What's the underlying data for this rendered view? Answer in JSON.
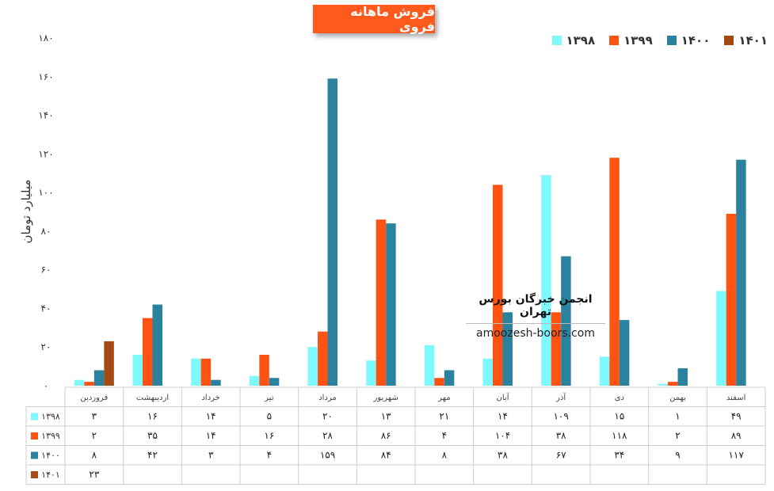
{
  "chart_data": {
    "type": "bar",
    "title": "فروش ماهانه فروی",
    "ylabel": "میلیارد تومان",
    "ylim": [
      0,
      180
    ],
    "yticks": [
      "۰",
      "۲۰",
      "۴۰",
      "۶۰",
      "۸۰",
      "۱۰۰",
      "۱۲۰",
      "۱۴۰",
      "۱۶۰",
      "۱۸۰"
    ],
    "grid": false,
    "legend_position": "top-right",
    "categories": [
      "فروردین",
      "اردیبهشت",
      "خرداد",
      "تیر",
      "مرداد",
      "شهریور",
      "مهر",
      "آبان",
      "آذر",
      "دی",
      "بهمن",
      "اسفند"
    ],
    "series": [
      {
        "name": "۱۳۹۸",
        "color": "#7ef9ff",
        "values": [
          3,
          16,
          14,
          5,
          20,
          13,
          21,
          14,
          109,
          15,
          1,
          49
        ],
        "labels": [
          "۳",
          "۱۶",
          "۱۴",
          "۵",
          "۲۰",
          "۱۳",
          "۲۱",
          "۱۴",
          "۱۰۹",
          "۱۵",
          "۱",
          "۴۹"
        ]
      },
      {
        "name": "۱۳۹۹",
        "color": "#ff5314",
        "values": [
          2,
          35,
          14,
          16,
          28,
          86,
          4,
          104,
          38,
          118,
          2,
          89
        ],
        "labels": [
          "۲",
          "۳۵",
          "۱۴",
          "۱۶",
          "۲۸",
          "۸۶",
          "۴",
          "۱۰۴",
          "۳۸",
          "۱۱۸",
          "۲",
          "۸۹"
        ]
      },
      {
        "name": "۱۴۰۰",
        "color": "#2b829e",
        "values": [
          8,
          42,
          3,
          4,
          159,
          84,
          8,
          38,
          67,
          34,
          9,
          117
        ],
        "labels": [
          "۸",
          "۴۲",
          "۳",
          "۴",
          "۱۵۹",
          "۸۴",
          "۸",
          "۳۸",
          "۶۷",
          "۳۴",
          "۹",
          "۱۱۷"
        ]
      },
      {
        "name": "۱۴۰۱",
        "color": "#a44a12",
        "values": [
          23,
          null,
          null,
          null,
          null,
          null,
          null,
          null,
          null,
          null,
          null,
          null
        ],
        "labels": [
          "۲۳",
          "",
          "",
          "",
          "",
          "",
          "",
          "",
          "",
          "",
          "",
          ""
        ]
      }
    ]
  },
  "watermark": {
    "title": "انجمن خبرگان بورس تهران",
    "url": "amoozesh-boors.com"
  }
}
